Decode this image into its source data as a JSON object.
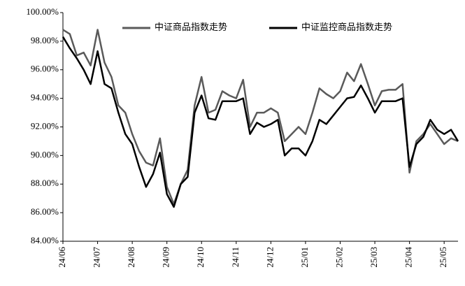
{
  "chart_data": {
    "type": "line",
    "categories": [
      "24/06",
      null,
      null,
      null,
      null,
      "24/07",
      null,
      null,
      null,
      null,
      "24/08",
      null,
      null,
      null,
      null,
      "24/09",
      null,
      null,
      null,
      null,
      "24/10",
      null,
      null,
      null,
      null,
      "24/11",
      null,
      null,
      null,
      null,
      "24/12",
      null,
      null,
      null,
      null,
      "25/01",
      null,
      null,
      null,
      null,
      "25/02",
      null,
      null,
      null,
      null,
      "25/03",
      null,
      null,
      null,
      null,
      "25/04",
      null,
      null,
      null,
      null,
      "25/05",
      null,
      null
    ],
    "series": [
      {
        "name": "中证商品指数走势",
        "color": "#5a5a5a",
        "values": [
          98.8,
          98.5,
          97.0,
          97.2,
          96.3,
          98.8,
          96.5,
          95.5,
          93.5,
          93.0,
          91.5,
          90.3,
          89.5,
          89.3,
          91.2,
          87.8,
          86.6,
          88.0,
          89.0,
          93.5,
          95.5,
          93.0,
          93.2,
          94.5,
          94.2,
          94.0,
          95.3,
          92.0,
          93.0,
          93.0,
          93.3,
          93.0,
          91.0,
          91.5,
          92.0,
          91.5,
          93.0,
          94.7,
          94.3,
          94.0,
          94.5,
          95.8,
          95.2,
          96.4,
          95.0,
          93.5,
          94.5,
          94.6,
          94.6,
          95.0,
          88.8,
          91.0,
          91.5,
          92.2,
          91.5,
          90.8,
          91.2,
          91.0
        ]
      },
      {
        "name": "中证监控商品指数走势",
        "color": "#000000",
        "values": [
          98.3,
          97.5,
          96.8,
          96.0,
          95.0,
          97.3,
          95.0,
          94.7,
          93.0,
          91.5,
          90.8,
          89.2,
          87.8,
          88.7,
          90.2,
          87.3,
          86.4,
          88.0,
          88.5,
          93.0,
          94.2,
          92.6,
          92.5,
          93.8,
          93.8,
          93.8,
          94.0,
          91.5,
          92.3,
          92.0,
          92.2,
          92.5,
          90.0,
          90.5,
          90.5,
          90.0,
          91.0,
          92.5,
          92.2,
          92.8,
          93.4,
          94.0,
          94.1,
          94.9,
          94.0,
          93.0,
          93.8,
          93.8,
          93.8,
          94.0,
          89.2,
          90.8,
          91.3,
          92.5,
          91.8,
          91.5,
          91.8,
          91.0
        ]
      }
    ],
    "ylim": [
      84,
      100
    ],
    "yticks": [
      {
        "value": 84,
        "label": "84.00%"
      },
      {
        "value": 86,
        "label": "86.00%"
      },
      {
        "value": 88,
        "label": "88.00%"
      },
      {
        "value": 90,
        "label": "90.00%"
      },
      {
        "value": 92,
        "label": "92.00%"
      },
      {
        "value": 94,
        "label": "94.00%"
      },
      {
        "value": 96,
        "label": "96.00%"
      },
      {
        "value": 98,
        "label": "98.00%"
      },
      {
        "value": 100,
        "label": "100.00%"
      }
    ],
    "grid": false,
    "legend": "top"
  }
}
